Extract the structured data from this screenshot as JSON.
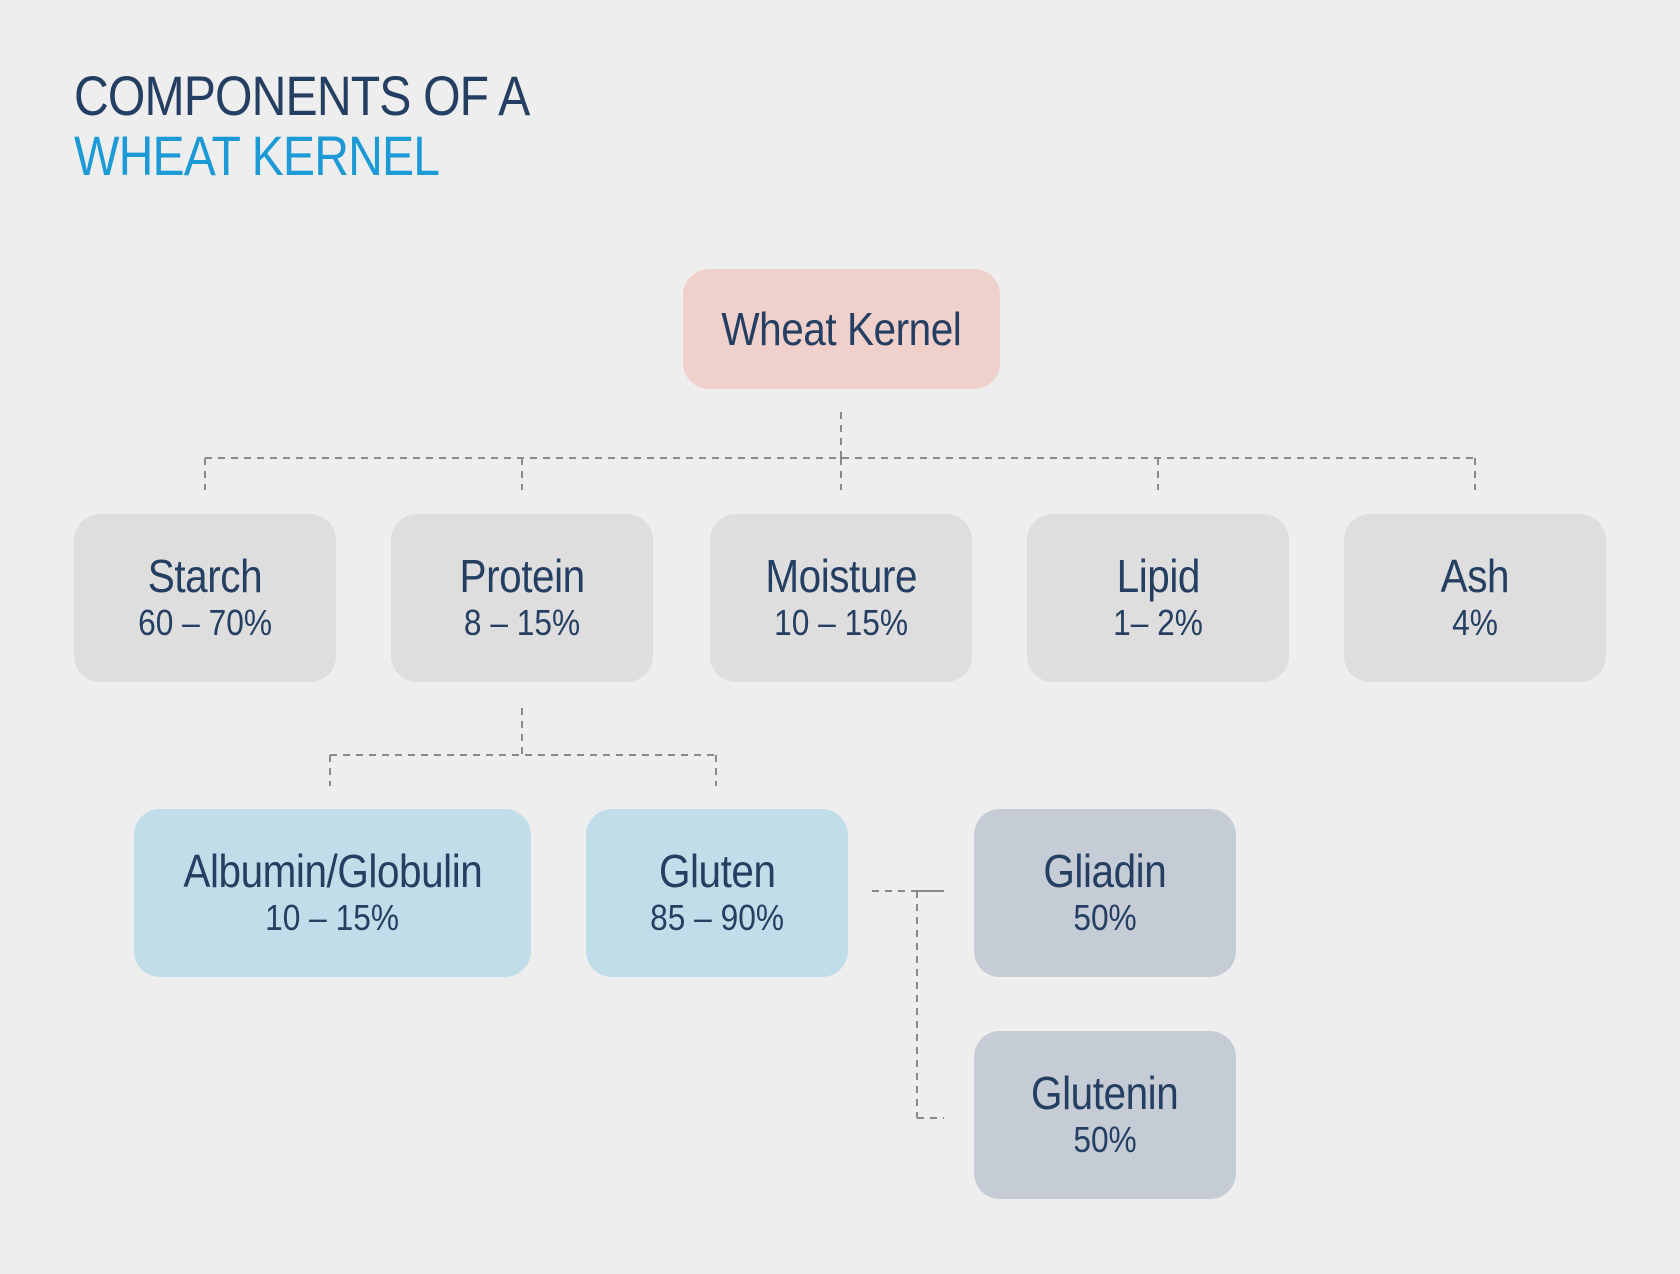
{
  "title": {
    "line1": "COMPONENTS OF A",
    "line2": "WHEAT KERNEL"
  },
  "colors": {
    "title_dark": "#253f63",
    "title_accent": "#1b9ad6",
    "root_fill": "#efd0cb",
    "level1_fill": "#dedede",
    "protein_child_fill": "#c0dde9",
    "gluten_child_fill": "#c5ccd5",
    "connector": "#8a8a8a"
  },
  "nodes": {
    "root": {
      "label": "Wheat Kernel"
    },
    "starch": {
      "label": "Starch",
      "value": "60 – 70%"
    },
    "protein": {
      "label": "Protein",
      "value": "8 – 15%"
    },
    "moisture": {
      "label": "Moisture",
      "value": "10 – 15%"
    },
    "lipid": {
      "label": "Lipid",
      "value": "1– 2%"
    },
    "ash": {
      "label": "Ash",
      "value": "4%"
    },
    "albumin": {
      "label": "Albumin/Globulin",
      "value": "10 – 15%"
    },
    "gluten": {
      "label": "Gluten",
      "value": "85 – 90%"
    },
    "gliadin": {
      "label": "Gliadin",
      "value": "50%"
    },
    "glutenin": {
      "label": "Glutenin",
      "value": "50%"
    }
  }
}
